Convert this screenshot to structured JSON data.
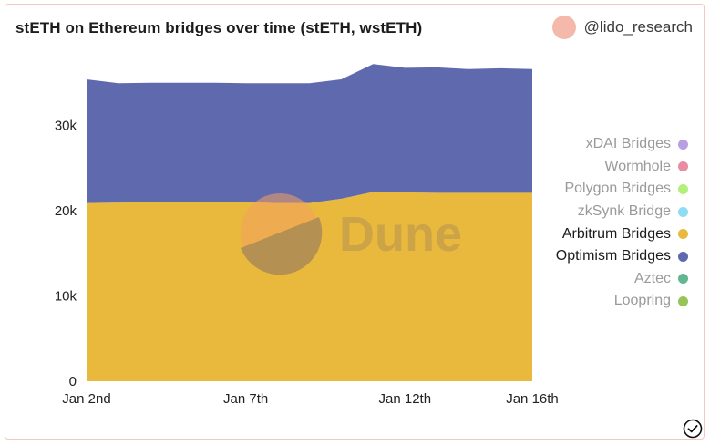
{
  "title": "stETH on Ethereum bridges over time (stETH, wstETH)",
  "author": "@lido_research",
  "watermark": "Dune",
  "chart_data": {
    "type": "area",
    "stacked": true,
    "x": [
      "Jan 2nd",
      "Jan 3rd",
      "Jan 4th",
      "Jan 5th",
      "Jan 6th",
      "Jan 7th",
      "Jan 8th",
      "Jan 9th",
      "Jan 10th",
      "Jan 11th",
      "Jan 12th",
      "Jan 13th",
      "Jan 14th",
      "Jan 15th",
      "Jan 16th"
    ],
    "x_ticks": [
      "Jan 2nd",
      "Jan 7th",
      "Jan 12th",
      "Jan 16th"
    ],
    "y_ticks": [
      "0",
      "10k",
      "20k",
      "30k"
    ],
    "ylim": [
      0,
      40000
    ],
    "series": [
      {
        "name": "Arbitrum Bridges",
        "color": "#e8b93c",
        "values": [
          20900,
          20950,
          21000,
          21000,
          21000,
          21000,
          20900,
          20900,
          21400,
          22200,
          22150,
          22100,
          22100,
          22100,
          22100
        ]
      },
      {
        "name": "Optimism Bridges",
        "color": "#5f69ad",
        "values": [
          14500,
          14000,
          14000,
          14000,
          14000,
          13950,
          14050,
          14050,
          14000,
          15000,
          14600,
          14700,
          14500,
          14600,
          14500
        ]
      }
    ],
    "legend": [
      {
        "label": "xDAI Bridges",
        "color": "#b89fe3",
        "active": false
      },
      {
        "label": "Wormhole",
        "color": "#e88ca1",
        "active": false
      },
      {
        "label": "Polygon Bridges",
        "color": "#b3ef7b",
        "active": false
      },
      {
        "label": "zkSynk Bridge",
        "color": "#8fdcf3",
        "active": false
      },
      {
        "label": "Arbitrum Bridges",
        "color": "#e8b93c",
        "active": true
      },
      {
        "label": "Optimism Bridges",
        "color": "#5f69ad",
        "active": true
      },
      {
        "label": "Aztec",
        "color": "#61b890",
        "active": false
      },
      {
        "label": "Loopring",
        "color": "#97c457",
        "active": false
      }
    ],
    "legend_position": "right"
  }
}
